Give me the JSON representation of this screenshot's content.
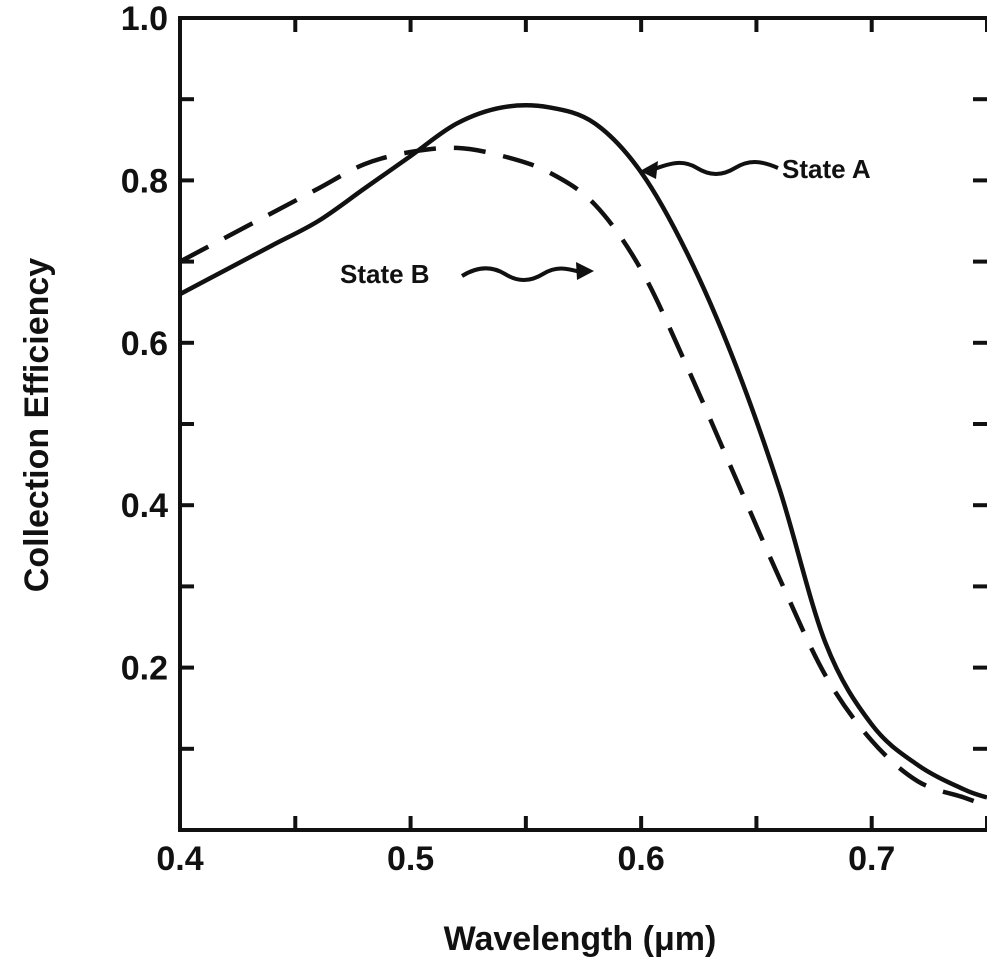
{
  "chart_data": {
    "type": "line",
    "title": "",
    "xlabel": "Wavelength (μm)",
    "ylabel": "Collection Efficiency",
    "xlim": [
      0.4,
      0.75
    ],
    "ylim": [
      0.0,
      1.0
    ],
    "x_ticks": [
      {
        "value": 0.4,
        "label": "0.4"
      },
      {
        "value": 0.5,
        "label": "0.5"
      },
      {
        "value": 0.6,
        "label": "0.6"
      },
      {
        "value": 0.7,
        "label": "0.7"
      }
    ],
    "y_ticks": [
      {
        "value": 0.2,
        "label": "0.2"
      },
      {
        "value": 0.4,
        "label": "0.4"
      },
      {
        "value": 0.6,
        "label": "0.6"
      },
      {
        "value": 0.8,
        "label": "0.8"
      },
      {
        "value": 1.0,
        "label": "1.0"
      }
    ],
    "grid": false,
    "legend": "none",
    "series": [
      {
        "name": "State A",
        "style": "solid",
        "color": "#111111",
        "x": [
          0.4,
          0.42,
          0.44,
          0.46,
          0.48,
          0.5,
          0.52,
          0.54,
          0.56,
          0.58,
          0.6,
          0.62,
          0.64,
          0.66,
          0.68,
          0.7,
          0.72,
          0.74,
          0.75
        ],
        "y": [
          0.66,
          0.69,
          0.72,
          0.75,
          0.79,
          0.83,
          0.87,
          0.89,
          0.89,
          0.87,
          0.81,
          0.71,
          0.58,
          0.42,
          0.23,
          0.13,
          0.08,
          0.05,
          0.04
        ]
      },
      {
        "name": "State B",
        "style": "dashed",
        "color": "#111111",
        "x": [
          0.4,
          0.42,
          0.44,
          0.46,
          0.48,
          0.5,
          0.52,
          0.54,
          0.56,
          0.58,
          0.6,
          0.62,
          0.64,
          0.66,
          0.68,
          0.7,
          0.72,
          0.74,
          0.75
        ],
        "y": [
          0.7,
          0.73,
          0.76,
          0.79,
          0.82,
          0.835,
          0.84,
          0.83,
          0.81,
          0.77,
          0.69,
          0.57,
          0.44,
          0.31,
          0.19,
          0.11,
          0.06,
          0.04,
          0.03
        ]
      }
    ],
    "annotations": [
      {
        "text": "State A",
        "series": "State A"
      },
      {
        "text": "State B",
        "series": "State B"
      }
    ]
  }
}
